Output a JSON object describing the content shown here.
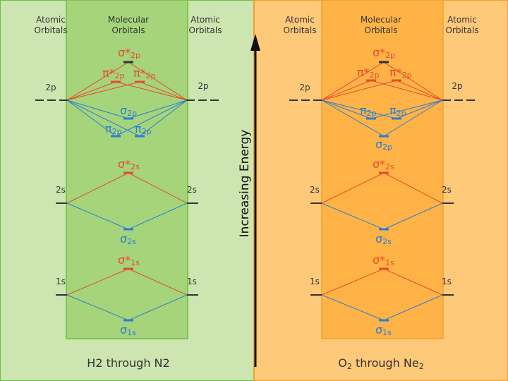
{
  "colors": {
    "left_bg": "#cde6b1",
    "left_mid": "#a6d47a",
    "left_border": "#6fbf3f",
    "right_bg": "#ffc97a",
    "right_mid": "#ffb347",
    "right_border": "#f0a030",
    "antibond": "#e84a2a",
    "bond": "#2a7fd4",
    "level": "#333333",
    "axis": "#111111"
  },
  "headers": {
    "atomic_line1": "Atomic",
    "atomic_line2": "Orbitals",
    "molecular_line1": "Molecular",
    "molecular_line2": "Orbitals"
  },
  "axis_label": "Increasing Energy",
  "left_panel": {
    "title": "H2 through N2",
    "ao": {
      "p": "2p",
      "s2": "2s",
      "s1": "1s"
    },
    "mo": {
      "sigma_star_2p": {
        "sym": "σ*",
        "sub": "2p"
      },
      "pi_star_2p_a": {
        "sym": "π*",
        "sub": "2p"
      },
      "pi_star_2p_b": {
        "sym": "π*",
        "sub": "2p"
      },
      "sigma_2p": {
        "sym": "σ",
        "sub": "2p"
      },
      "pi_2p_a": {
        "sym": "π",
        "sub": "2p"
      },
      "pi_2p_b": {
        "sym": "π",
        "sub": "2p"
      },
      "sigma_star_2s": {
        "sym": "σ*",
        "sub": "2s"
      },
      "sigma_2s": {
        "sym": "σ",
        "sub": "2s"
      },
      "sigma_star_1s": {
        "sym": "σ*",
        "sub": "1s"
      },
      "sigma_1s": {
        "sym": "σ",
        "sub": "1s"
      }
    }
  },
  "right_panel": {
    "title_main": "O",
    "title_sub": "2",
    "title_mid": " through Ne",
    "title_sub2": "2",
    "ao": {
      "p": "2p",
      "s2": "2s",
      "s1": "1s"
    },
    "mo": {
      "sigma_star_2p": {
        "sym": "σ*",
        "sub": "2p"
      },
      "pi_star_2p_a": {
        "sym": "π*",
        "sub": "2p"
      },
      "pi_star_2p_b": {
        "sym": "π*",
        "sub": "2p"
      },
      "pi_2p_a": {
        "sym": "π",
        "sub": "2p"
      },
      "pi_2p_b": {
        "sym": "π",
        "sub": "2p"
      },
      "sigma_2p": {
        "sym": "σ",
        "sub": "2p"
      },
      "sigma_star_2s": {
        "sym": "σ*",
        "sub": "2s"
      },
      "sigma_2s": {
        "sym": "σ",
        "sub": "2s"
      },
      "sigma_star_1s": {
        "sym": "σ*",
        "sub": "1s"
      },
      "sigma_1s": {
        "sym": "σ",
        "sub": "1s"
      }
    }
  }
}
